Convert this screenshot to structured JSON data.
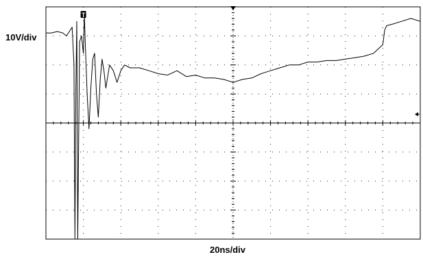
{
  "scope": {
    "vertical_scale_label": "10V/div",
    "horizontal_scale_label": "20ns/div",
    "trigger_marker_label": "T",
    "colors": {
      "trace": "#000000",
      "grid": "#000000",
      "background": "#ffffff"
    }
  },
  "chart_data": {
    "type": "line",
    "title": "",
    "xlabel": "20ns/div",
    "ylabel": "10V/div",
    "grid": true,
    "x_divisions": 10,
    "y_divisions": 8,
    "xlim": [
      0,
      200
    ],
    "ylim": [
      -40,
      40
    ],
    "x_unit": "ns",
    "y_unit": "V",
    "series": [
      {
        "points": [
          [
            0,
            31
          ],
          [
            3,
            31
          ],
          [
            6,
            31.5
          ],
          [
            9,
            31
          ],
          [
            11,
            30
          ],
          [
            13,
            32
          ],
          [
            14,
            33
          ],
          [
            15,
            20
          ],
          [
            15.5,
            -40
          ],
          [
            16,
            12
          ],
          [
            16.5,
            35
          ],
          [
            17,
            -40
          ],
          [
            18,
            28
          ],
          [
            19,
            30
          ],
          [
            20,
            24
          ],
          [
            20.5,
            38
          ],
          [
            21,
            28
          ],
          [
            22,
            10
          ],
          [
            23,
            -2
          ],
          [
            24,
            12
          ],
          [
            25,
            22
          ],
          [
            26,
            24
          ],
          [
            27,
            10
          ],
          [
            28,
            2
          ],
          [
            29,
            15
          ],
          [
            30,
            22
          ],
          [
            31,
            18
          ],
          [
            32,
            12
          ],
          [
            33,
            16
          ],
          [
            34,
            20
          ],
          [
            36,
            18
          ],
          [
            38,
            14
          ],
          [
            40,
            18
          ],
          [
            42,
            20
          ],
          [
            45,
            19
          ],
          [
            50,
            19
          ],
          [
            55,
            18
          ],
          [
            60,
            17
          ],
          [
            65,
            16.5
          ],
          [
            70,
            18
          ],
          [
            75,
            16
          ],
          [
            80,
            16.5
          ],
          [
            85,
            15.5
          ],
          [
            90,
            15.5
          ],
          [
            95,
            15
          ],
          [
            100,
            14
          ],
          [
            105,
            15
          ],
          [
            110,
            15.5
          ],
          [
            115,
            17
          ],
          [
            120,
            18
          ],
          [
            125,
            19
          ],
          [
            130,
            20
          ],
          [
            135,
            20
          ],
          [
            140,
            21
          ],
          [
            145,
            21
          ],
          [
            150,
            21.5
          ],
          [
            155,
            21.5
          ],
          [
            160,
            22
          ],
          [
            165,
            22.5
          ],
          [
            170,
            23
          ],
          [
            175,
            24
          ],
          [
            180,
            27
          ],
          [
            181,
            32
          ],
          [
            182,
            33.5
          ],
          [
            185,
            34
          ],
          [
            190,
            35
          ],
          [
            195,
            36
          ],
          [
            200,
            35
          ]
        ]
      }
    ],
    "annotations": [
      {
        "label": "T",
        "kind": "trigger",
        "x": 20
      },
      {
        "label": "arrow-left",
        "kind": "trigger-level",
        "y": 3
      }
    ]
  }
}
